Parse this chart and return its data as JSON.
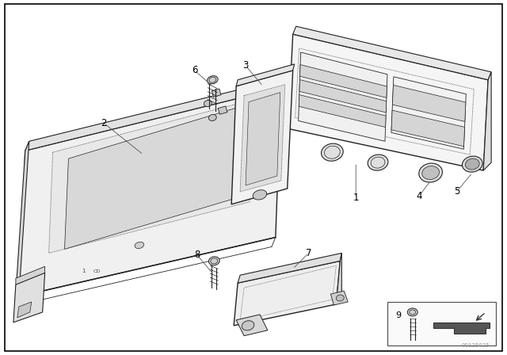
{
  "bg_color": "#ffffff",
  "line_color": "#222222",
  "fig_width": 6.4,
  "fig_height": 4.48,
  "dpi": 100,
  "watermark": "00125025"
}
